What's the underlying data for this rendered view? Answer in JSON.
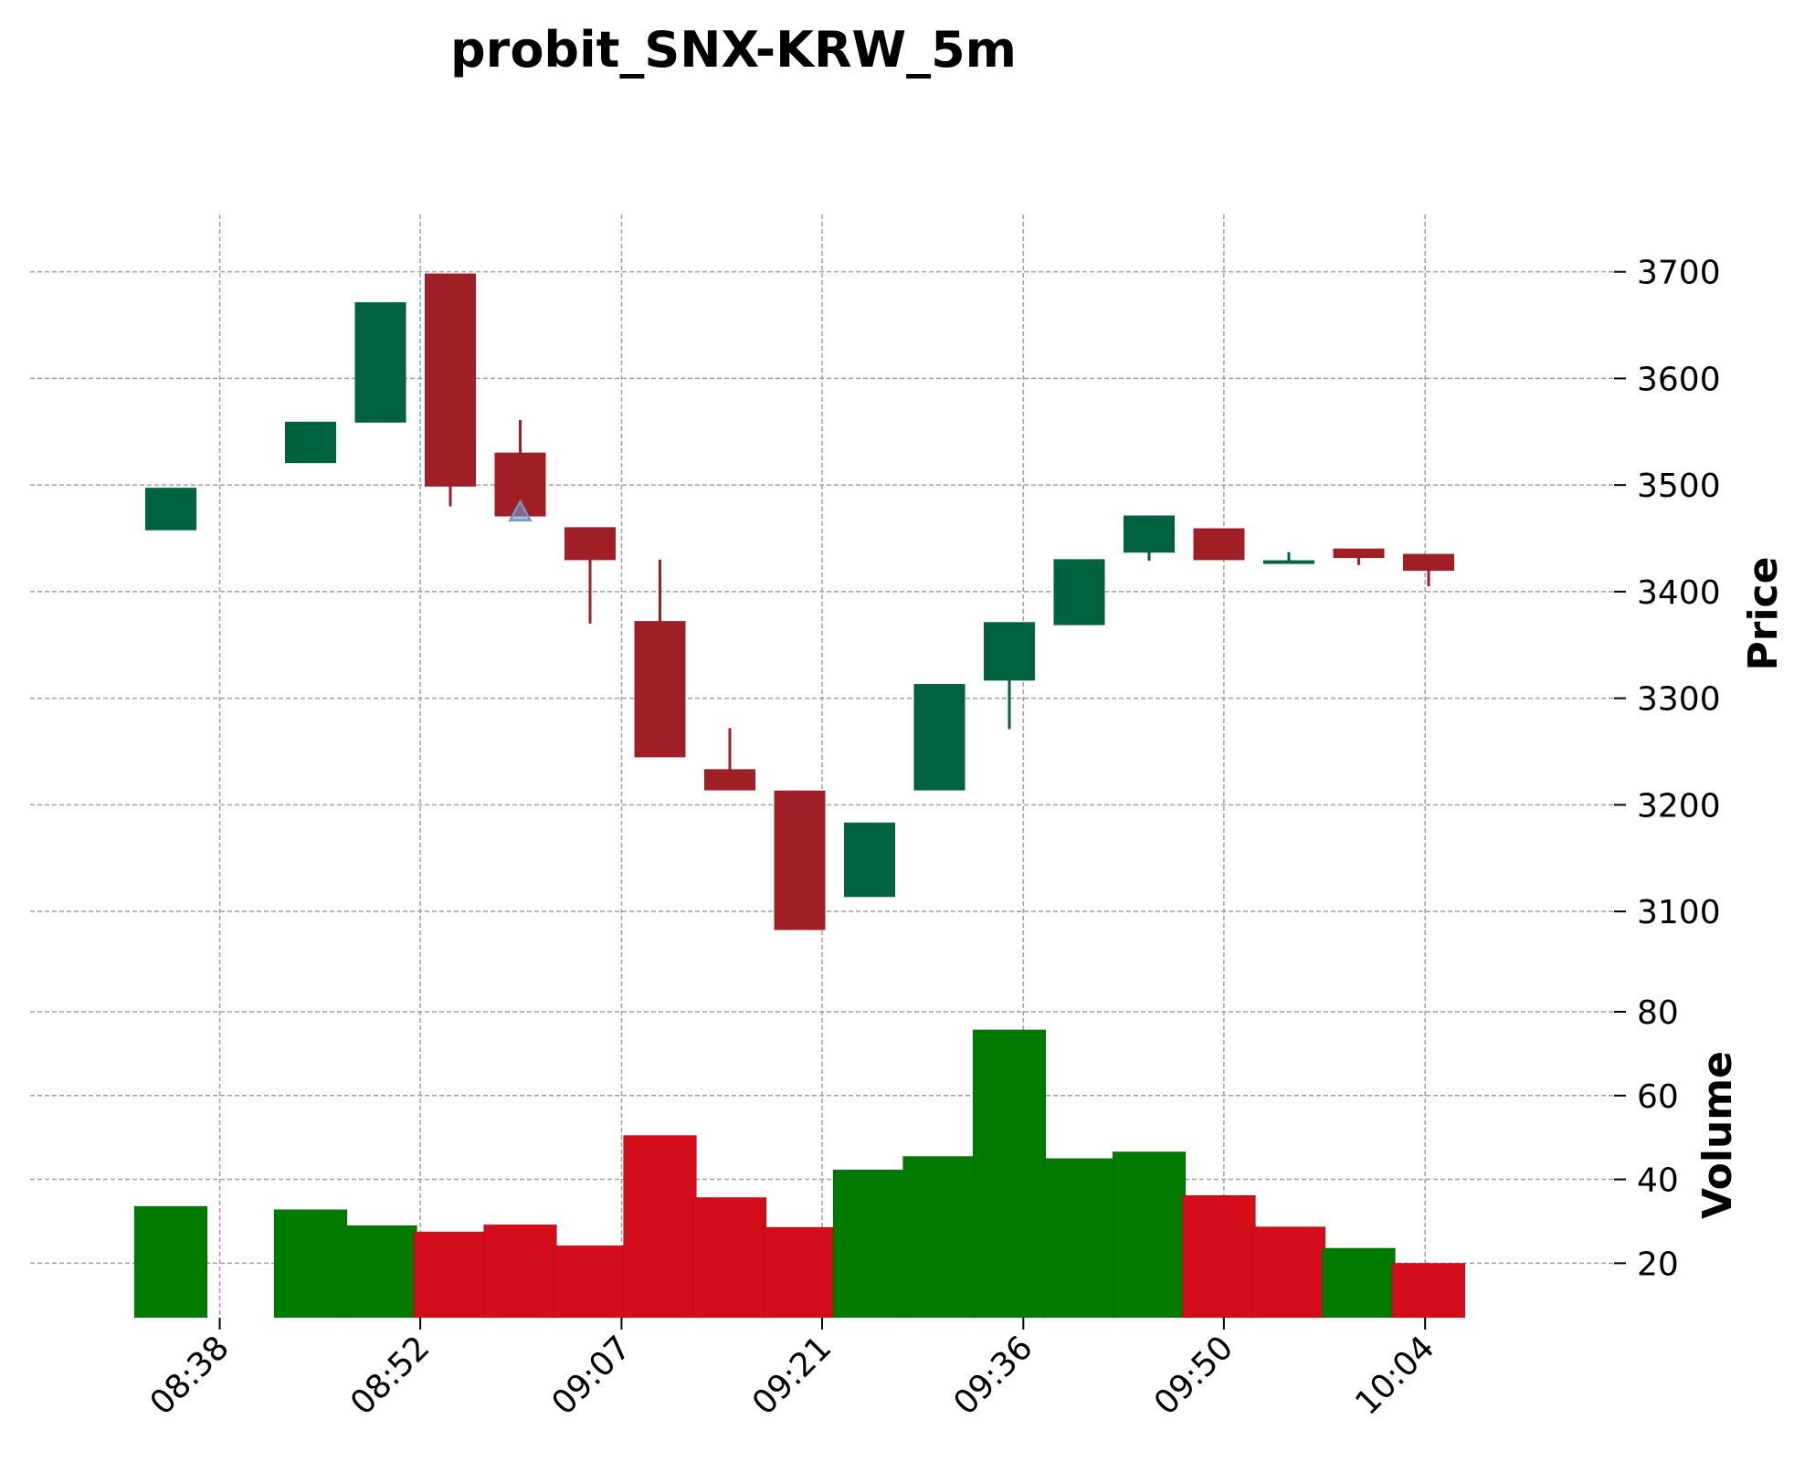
{
  "chart_data": {
    "type": "candlestick",
    "title": "probit_SNX-KRW_5m",
    "price_panel": {
      "ylabel": "Price",
      "ylim": [
        3065,
        3725
      ],
      "yticks": [
        3100,
        3200,
        3300,
        3400,
        3500,
        3600,
        3700
      ]
    },
    "volume_panel": {
      "ylabel": "Volume",
      "ylim": [
        7,
        80
      ],
      "yticks": [
        20,
        40,
        60,
        80
      ]
    },
    "xticks": [
      {
        "label": "08:38",
        "index": 0.7
      },
      {
        "label": "08:52",
        "index": 3.57
      },
      {
        "label": "09:07",
        "index": 6.45
      },
      {
        "label": "09:21",
        "index": 9.32
      },
      {
        "label": "09:36",
        "index": 12.2
      },
      {
        "label": "09:50",
        "index": 15.07
      },
      {
        "label": "10:04",
        "index": 17.95
      }
    ],
    "colors": {
      "up_candle": "#006340",
      "down_candle": "#a01f27",
      "up_volume": "#007a00",
      "down_volume": "#d40d1a",
      "marker": "#6f96c9"
    },
    "candles": [
      {
        "index": 0,
        "open": 3458,
        "high": 3497,
        "low": 3458,
        "close": 3497
      },
      {
        "index": 2,
        "open": 3521,
        "high": 3559,
        "low": 3521,
        "close": 3559
      },
      {
        "index": 3,
        "open": 3559,
        "high": 3671,
        "low": 3559,
        "close": 3671
      },
      {
        "index": 4,
        "open": 3698,
        "high": 3698,
        "low": 3480,
        "close": 3499
      },
      {
        "index": 5,
        "open": 3530,
        "high": 3561,
        "low": 3471,
        "close": 3471
      },
      {
        "index": 6,
        "open": 3460,
        "high": 3460,
        "low": 3370,
        "close": 3430
      },
      {
        "index": 7,
        "open": 3372,
        "high": 3430,
        "low": 3245,
        "close": 3245
      },
      {
        "index": 8,
        "open": 3233,
        "high": 3272,
        "low": 3214,
        "close": 3214
      },
      {
        "index": 9,
        "open": 3213,
        "high": 3213,
        "low": 3083,
        "close": 3083
      },
      {
        "index": 10,
        "open": 3114,
        "high": 3183,
        "low": 3114,
        "close": 3183
      },
      {
        "index": 11,
        "open": 3214,
        "high": 3313,
        "low": 3214,
        "close": 3313
      },
      {
        "index": 12,
        "open": 3317,
        "high": 3371,
        "low": 3271,
        "close": 3371
      },
      {
        "index": 13,
        "open": 3369,
        "high": 3430,
        "low": 3369,
        "close": 3430
      },
      {
        "index": 14,
        "open": 3437,
        "high": 3471,
        "low": 3429,
        "close": 3471
      },
      {
        "index": 15,
        "open": 3459,
        "high": 3459,
        "low": 3430,
        "close": 3430
      },
      {
        "index": 16,
        "open": 3427,
        "high": 3437,
        "low": 3427,
        "close": 3429
      },
      {
        "index": 17,
        "open": 3440,
        "high": 3440,
        "low": 3425,
        "close": 3432
      },
      {
        "index": 18,
        "open": 3435,
        "high": 3435,
        "low": 3405,
        "close": 3420
      }
    ],
    "volume": [
      {
        "index": 0,
        "value": 33.6,
        "direction": "up"
      },
      {
        "index": 2,
        "value": 32.8,
        "direction": "up"
      },
      {
        "index": 3,
        "value": 29.0,
        "direction": "up"
      },
      {
        "index": 4,
        "value": 27.5,
        "direction": "down"
      },
      {
        "index": 5,
        "value": 29.2,
        "direction": "down"
      },
      {
        "index": 6,
        "value": 24.2,
        "direction": "down"
      },
      {
        "index": 7,
        "value": 50.5,
        "direction": "down"
      },
      {
        "index": 8,
        "value": 35.7,
        "direction": "down"
      },
      {
        "index": 9,
        "value": 28.6,
        "direction": "down"
      },
      {
        "index": 10,
        "value": 42.3,
        "direction": "up"
      },
      {
        "index": 11,
        "value": 45.5,
        "direction": "up"
      },
      {
        "index": 12,
        "value": 75.7,
        "direction": "up"
      },
      {
        "index": 13,
        "value": 45.0,
        "direction": "up"
      },
      {
        "index": 14,
        "value": 46.6,
        "direction": "up"
      },
      {
        "index": 15,
        "value": 36.2,
        "direction": "down"
      },
      {
        "index": 16,
        "value": 28.7,
        "direction": "down"
      },
      {
        "index": 17,
        "value": 23.6,
        "direction": "up"
      },
      {
        "index": 18,
        "value": 20.0,
        "direction": "down"
      }
    ],
    "markers": [
      {
        "index": 5,
        "price": 3475,
        "shape": "triangle-up"
      }
    ]
  }
}
